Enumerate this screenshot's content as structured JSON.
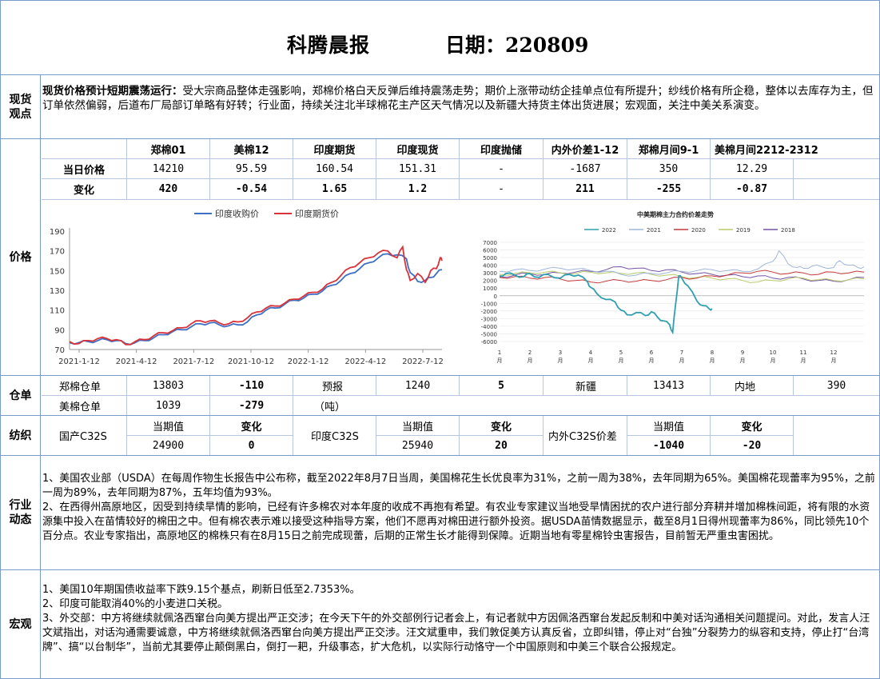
{
  "header": {
    "title": "科腾晨报",
    "date_label": "日期：220809"
  },
  "spot": {
    "label_1": "现货",
    "label_2": "观点",
    "headline": "现货价格预计短期震荡运行：",
    "body": "受大宗商品整体走强影响，郑棉价格白天反弹后维持震荡走势；期价上涨带动纺企挂单点位有所提升；纱线价格有所企稳，整体以去库存为主，但订单依然偏弱，后道布厂局部订单略有好转；行业面，持续关注北半球棉花主产区天气情况以及新疆大持货主体出货进展；宏观面，关注中美关系演变。"
  },
  "price": {
    "label": "价格",
    "headers": [
      "郑棉01",
      "美棉12",
      "印度期货",
      "印度现货",
      "印度抛储",
      "内外价差1-12",
      "郑棉月间9-1",
      "美棉月间2212-2312"
    ],
    "today_label": "当日价格",
    "today": [
      "14210",
      "95.59",
      "160.54",
      "151.31",
      "-",
      "-1687",
      "350",
      "12.29"
    ],
    "change_label": "变化",
    "change": [
      "420",
      "-0.54",
      "1.65",
      "1.2",
      "-",
      "211",
      "-255",
      "-0.87"
    ]
  },
  "warehouse": {
    "label": "仓单",
    "zz_label": "郑棉仓单",
    "zz_value": "13803",
    "zz_change": "-110",
    "forecast_label": "预报",
    "forecast_value": "1240",
    "forecast_change": "5",
    "xj_label": "新疆",
    "xj_value": "13413",
    "nd_label": "内地",
    "nd_value": "390",
    "us_label": "美棉仓单",
    "us_value": "1039",
    "us_change": "-279",
    "unit": "（吨）"
  },
  "textile": {
    "label": "纺织",
    "cur_label": "当期值",
    "chg_label": "变化",
    "dom_label": "国产C32S",
    "dom_value": "24900",
    "dom_change": "0",
    "ind_label": "印度C32S",
    "ind_value": "25940",
    "ind_change": "20",
    "spread_label": "内外C32S价差",
    "spread_value": "-1040",
    "spread_change": "-20"
  },
  "industry": {
    "label_1": "行业",
    "label_2": "动态",
    "p1": "1、美国农业部（USDA）在每周作物生长报告中公布称，截至2022年8月7日当周，美国棉花生长优良率为31%，之前一周为38%，去年同期为65%。美国棉花现蕾率为95%，之前一周为89%，去年同期为87%，五年均值为93%。",
    "p2": "2、在西得州高原地区，因受到持续旱情的影响，已经有许多棉农对本年度的收成不再抱有希望。有农业专家建议当地受旱情困扰的农户进行部分弃耕并增加棉株间距，将有限的水资源集中投入在苗情较好的棉田之中。但有棉农表示难以接受这种指导方案，他们不愿再对棉田进行额外投资。据USDA苗情数据显示，截至8月1日得州现蕾率为86%，同比领先10个百分点。农业专家指出，高原地区的棉株只有在8月15日之前完成现蕾，后期的正常生长才能得到保障。近期当地有零星棉铃虫害报告，目前暂无严重虫害困扰。"
  },
  "macro": {
    "label": "宏观",
    "p1": "1、美国10年期国债收益率下跌9.15个基点，刷新日低至2.7353%。",
    "p2": "2、印度可能取消40%的小麦进口关税。",
    "p3": "3、外交部：中方将继续就佩洛西窜台向美方提出严正交涉；在今天下午的外交部例行记者会上，有记者就中方因佩洛西窜台发起反制和中美对话沟通相关问题提问。对此，发言人汪文斌指出，对话沟通需要诚意，中方将继续就佩洛西窜台向美方提出严正交涉。汪文斌重申，我们敦促美方认真反省，立即纠错，停止对“台独”分裂势力的纵容和支持，停止打“台湾牌”、搞“以台制华”，当前尤其要停止颠倒黑白，倒打一耙，升级事态，扩大危机，以实际行动恪守一个中国原则和中美三个联合公报规定。"
  },
  "chart_data": [
    {
      "type": "line",
      "title": "",
      "legend": [
        "印度收购价",
        "印度期货价"
      ],
      "legend_position": "top",
      "x_ticks": [
        "2021-1-12",
        "2021-4-12",
        "2021-7-12",
        "2021-10-12",
        "2022-1-12",
        "2022-4-12",
        "2022-7-12"
      ],
      "y_ticks": [
        70,
        90,
        110,
        130,
        150,
        170,
        190
      ],
      "ylim": [
        70,
        190
      ],
      "colors": [
        "#3d6fc2",
        "#d9323a"
      ],
      "series": [
        {
          "name": "印度收购价",
          "x": [
            0,
            0.5,
            1,
            1.5,
            2,
            2.5,
            3,
            3.5,
            4,
            4.5,
            5,
            5.5,
            6,
            6.5,
            7,
            7.5,
            8,
            8.5,
            9,
            9.5,
            10,
            10.5,
            11,
            11.5,
            12,
            12.5,
            13,
            13.5,
            14,
            14.5,
            15,
            15.5,
            16,
            16.5,
            17,
            17.5,
            18,
            18.2,
            18.6,
            19,
            19.3,
            19.6,
            19.9
          ],
          "values": [
            77,
            77,
            78,
            79,
            80,
            79,
            76,
            77,
            79,
            82,
            85,
            88,
            90,
            93,
            96,
            97,
            95,
            94,
            95,
            98,
            105,
            110,
            112,
            116,
            120,
            122,
            126,
            129,
            135,
            140,
            147,
            152,
            158,
            163,
            167,
            166,
            162,
            148,
            139,
            140,
            143,
            147,
            151
          ]
        },
        {
          "name": "印度期货价",
          "x": [
            0,
            0.5,
            1,
            1.5,
            2,
            2.5,
            3,
            3.5,
            4,
            4.5,
            5,
            5.5,
            6,
            6.5,
            7,
            7.5,
            8,
            8.5,
            9,
            9.5,
            10,
            10.5,
            11,
            11.5,
            12,
            12.5,
            13,
            13.5,
            14,
            14.5,
            15,
            15.5,
            16,
            16.5,
            17,
            17.5,
            17.8,
            18,
            18.2,
            18.6,
            19,
            19.3,
            19.6,
            19.8,
            19.9
          ],
          "values": [
            78,
            76,
            79,
            81,
            81,
            80,
            75,
            78,
            80,
            84,
            87,
            89,
            92,
            96,
            99,
            99,
            97,
            96,
            98,
            102,
            108,
            112,
            114,
            117,
            121,
            124,
            128,
            131,
            138,
            145,
            153,
            158,
            163,
            168,
            170,
            163,
            174,
            151,
            140,
            147,
            138,
            150,
            152,
            163,
            160
          ]
        }
      ]
    },
    {
      "type": "line",
      "title": "中美期棉主力合约价差走势",
      "legend": [
        "2022",
        "2021",
        "2020",
        "2019",
        "2018"
      ],
      "legend_position": "top",
      "x_ticks": [
        "1月",
        "2月",
        "3月",
        "4月",
        "5月",
        "6月",
        "7月",
        "8月",
        "9月",
        "10月",
        "11月",
        "12月"
      ],
      "y_ticks": [
        -6000,
        -5000,
        -4000,
        -3000,
        -2000,
        -1000,
        0,
        1000,
        2000,
        3000,
        4000,
        5000,
        6000,
        7000
      ],
      "ylim": [
        -6000,
        7000
      ],
      "colors": [
        "#2f9fb0",
        "#9fb5d9",
        "#c43a3a",
        "#b9cc6a",
        "#7453a6"
      ],
      "series": [
        {
          "name": "2022",
          "x": [
            1,
            1.2,
            1.5,
            1.8,
            2,
            2.3,
            2.6,
            3,
            3.3,
            3.6,
            3.9,
            4,
            4.2,
            4.5,
            4.8,
            5,
            5.2,
            5.5,
            5.8,
            6,
            6.2,
            6.4,
            6.6,
            6.7,
            6.8,
            6.9,
            7,
            7.2,
            7.5,
            7.7,
            7.9,
            8
          ],
          "values": [
            2600,
            2900,
            2700,
            2500,
            2900,
            2400,
            2800,
            2300,
            2800,
            2700,
            1800,
            1100,
            300,
            -500,
            -800,
            -1900,
            -2500,
            -2200,
            -2600,
            -2100,
            -2800,
            -3300,
            -3800,
            -4800,
            -1000,
            2600,
            2300,
            1300,
            -700,
            -1300,
            -1700,
            -1700
          ]
        },
        {
          "name": "2021",
          "x": [
            1,
            1.5,
            2,
            2.5,
            3,
            3.5,
            4,
            4.5,
            5,
            5.5,
            6,
            6.5,
            7,
            7.5,
            8,
            8.5,
            9,
            9.5,
            10,
            10.2,
            10.5,
            10.8,
            11,
            11.3,
            11.6,
            12,
            12.2,
            12.5,
            12.8,
            13
          ],
          "values": [
            3200,
            3400,
            3300,
            3500,
            3600,
            3500,
            3300,
            3200,
            2800,
            2700,
            2900,
            3000,
            3200,
            3300,
            3400,
            3300,
            3200,
            3500,
            4500,
            5900,
            4200,
            3700,
            3600,
            3900,
            3800,
            3700,
            4600,
            4000,
            3700,
            3800
          ]
        },
        {
          "name": "2020",
          "x": [
            1,
            1.5,
            2,
            2.5,
            3,
            3.5,
            4,
            4.5,
            5,
            5.5,
            6,
            6.5,
            7,
            7.5,
            8,
            8.5,
            9,
            9.5,
            10,
            10.5,
            11,
            11.5,
            12,
            12.5,
            13
          ],
          "values": [
            2400,
            2500,
            2300,
            2400,
            2200,
            2000,
            1800,
            1900,
            2000,
            1900,
            2000,
            2100,
            2400,
            2300,
            2600,
            2700,
            3000,
            3200,
            3100,
            2900,
            3000,
            2800,
            3100,
            3000,
            3100
          ]
        },
        {
          "name": "2019",
          "x": [
            1,
            1.5,
            2,
            2.5,
            3,
            3.5,
            4,
            4.5,
            5,
            5.5,
            6,
            6.5,
            7,
            7.5,
            8,
            8.5,
            9,
            9.5,
            10,
            10.5,
            11,
            11.5,
            12,
            12.5,
            13
          ],
          "values": [
            2800,
            2900,
            3000,
            3100,
            3000,
            2900,
            3100,
            3000,
            2900,
            3000,
            2800,
            2700,
            2500,
            2400,
            2300,
            2200,
            2000,
            1800,
            2000,
            2200,
            2300,
            2100,
            2000,
            2100,
            2200
          ]
        },
        {
          "name": "2018",
          "x": [
            1,
            1.5,
            2,
            2.5,
            3,
            3.5,
            4,
            4.5,
            5,
            5.5,
            6,
            6.5,
            7,
            7.5,
            8,
            8.5,
            9,
            9.5,
            10,
            10.5,
            11,
            11.5,
            12,
            12.5,
            13
          ],
          "values": [
            2500,
            2700,
            2900,
            2800,
            3000,
            3100,
            3200,
            3400,
            3800,
            3600,
            3300,
            3400,
            3100,
            2900,
            2800,
            2700,
            2500,
            2600,
            2300,
            2400,
            2200,
            2000,
            1900,
            2100,
            2400
          ]
        }
      ]
    }
  ]
}
